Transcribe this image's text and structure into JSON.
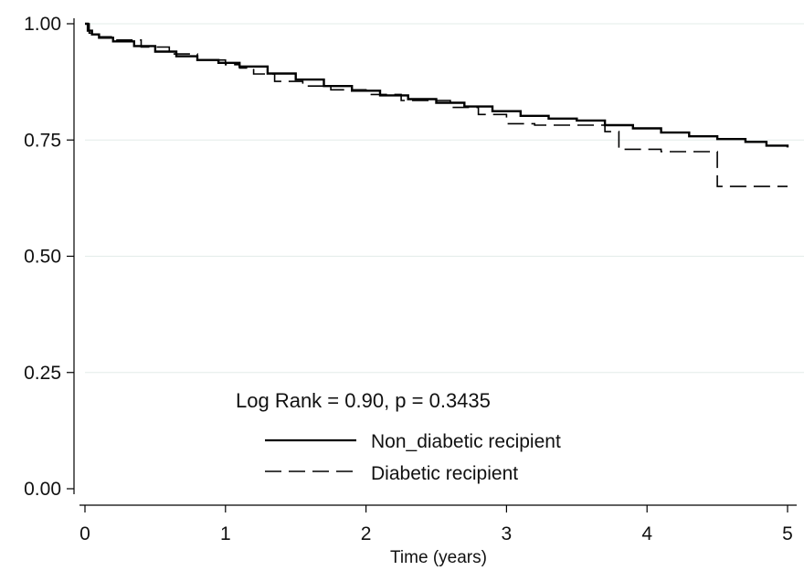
{
  "chart_data": {
    "type": "line",
    "title": "",
    "xlabel": "Time (years)",
    "ylabel": "",
    "xlim": [
      0,
      5
    ],
    "ylim": [
      0,
      1
    ],
    "x_ticks": [
      "0",
      "1",
      "2",
      "3",
      "4",
      "5"
    ],
    "y_ticks": [
      "0.00",
      "0.25",
      "0.50",
      "0.75",
      "1.00"
    ],
    "grid": "horizontal",
    "annotation": "Log Rank = 0.90, p = 0.3435",
    "legend_position": "bottom-center inside",
    "series": [
      {
        "name": "Non_diabetic recipient",
        "style": "solid",
        "color": "#000000",
        "step": true,
        "x": [
          0,
          0.02,
          0.05,
          0.1,
          0.2,
          0.35,
          0.5,
          0.65,
          0.8,
          0.95,
          1.1,
          1.3,
          1.5,
          1.7,
          1.9,
          2.1,
          2.3,
          2.5,
          2.7,
          2.9,
          3.1,
          3.3,
          3.5,
          3.7,
          3.9,
          4.1,
          4.3,
          4.5,
          4.7,
          4.85,
          5.0
        ],
        "y": [
          1.0,
          0.985,
          0.977,
          0.97,
          0.962,
          0.952,
          0.94,
          0.93,
          0.922,
          0.916,
          0.908,
          0.893,
          0.88,
          0.866,
          0.856,
          0.846,
          0.838,
          0.83,
          0.822,
          0.812,
          0.802,
          0.796,
          0.792,
          0.782,
          0.775,
          0.766,
          0.758,
          0.752,
          0.746,
          0.738,
          0.734
        ]
      },
      {
        "name": "Diabetic recipient",
        "style": "dashed",
        "color": "#000000",
        "step": true,
        "x": [
          0,
          0.03,
          0.1,
          0.2,
          0.4,
          0.6,
          0.8,
          1.0,
          1.1,
          1.2,
          1.35,
          1.55,
          1.75,
          2.0,
          2.25,
          2.6,
          2.8,
          3.0,
          3.2,
          3.5,
          3.7,
          3.8,
          4.1,
          4.5,
          5.0
        ],
        "y": [
          1.0,
          0.98,
          0.972,
          0.965,
          0.95,
          0.935,
          0.922,
          0.912,
          0.905,
          0.892,
          0.876,
          0.866,
          0.858,
          0.848,
          0.835,
          0.82,
          0.805,
          0.785,
          0.782,
          0.782,
          0.768,
          0.73,
          0.725,
          0.65,
          0.65
        ]
      }
    ]
  }
}
